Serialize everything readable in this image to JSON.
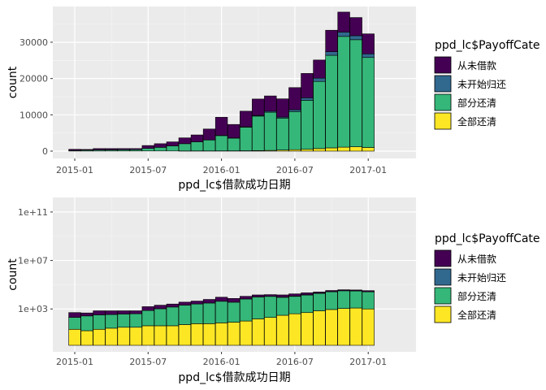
{
  "colors": {
    "panel_bg": "#EBEBEB",
    "grid_major": "#FFFFFF",
    "bar_outline": "#000000",
    "全部还清": "#FDE725",
    "部分还清": "#35B779",
    "未开始归还": "#31688E",
    "从未借款": "#440154"
  },
  "chart_data": [
    {
      "type": "bar",
      "stacked": true,
      "xlabel": "ppd_lc$借款成功日期",
      "ylabel": "count",
      "y_scale": "linear",
      "ylim": [
        0,
        40000
      ],
      "y_ticks": [
        0,
        10000,
        20000,
        30000
      ],
      "y_tick_labels": [
        "0",
        "10000",
        "20000",
        "30000"
      ],
      "x_ticks": [
        "2015-01",
        "2015-07",
        "2016-01",
        "2016-07",
        "2017-01"
      ],
      "categories": [
        "2015-01",
        "2015-02",
        "2015-03",
        "2015-04",
        "2015-05",
        "2015-06",
        "2015-07",
        "2015-08",
        "2015-09",
        "2015-10",
        "2015-11",
        "2015-12",
        "2016-01",
        "2016-02",
        "2016-03",
        "2016-04",
        "2016-05",
        "2016-06",
        "2016-07",
        "2016-08",
        "2016-09",
        "2016-10",
        "2016-11",
        "2016-12",
        "2017-01"
      ],
      "legend": {
        "title": "ppd_lc$PayoffCate",
        "position": "right",
        "entries": [
          "从未借款",
          "未开始归还",
          "部分还清",
          "全部还清"
        ]
      },
      "grid": true,
      "series": [
        {
          "name": "全部还清",
          "values": [
            20,
            15,
            20,
            25,
            30,
            30,
            40,
            40,
            40,
            50,
            60,
            60,
            70,
            80,
            100,
            150,
            200,
            300,
            400,
            500,
            700,
            900,
            1100,
            1200,
            1000
          ]
        },
        {
          "name": "部分还清",
          "values": [
            180,
            250,
            300,
            320,
            350,
            370,
            700,
            1000,
            1400,
            2000,
            2500,
            3000,
            4200,
            3500,
            6500,
            9500,
            10500,
            8800,
            10500,
            13500,
            18500,
            25500,
            30500,
            29500,
            24800
          ]
        },
        {
          "name": "未开始归还",
          "values": [
            0,
            0,
            0,
            0,
            0,
            0,
            0,
            0,
            0,
            0,
            0,
            30,
            50,
            60,
            100,
            200,
            300,
            300,
            500,
            700,
            900,
            1000,
            1200,
            1100,
            1000
          ]
        },
        {
          "name": "从未借款",
          "values": [
            300,
            200,
            380,
            350,
            320,
            300,
            800,
            1000,
            1100,
            1600,
            1900,
            3000,
            5000,
            3700,
            4300,
            4500,
            4200,
            5000,
            6100,
            6700,
            5000,
            5900,
            5500,
            5000,
            5500
          ]
        }
      ]
    },
    {
      "type": "bar",
      "stacked": true,
      "xlabel": "ppd_lc$借款成功日期",
      "ylabel": "count",
      "y_scale": "log10 (stacked)",
      "ylim": [
        1,
        1000000000000
      ],
      "y_ticks": [
        1000,
        10000000,
        100000000000
      ],
      "y_tick_labels": [
        "1e+03",
        "1e+07",
        "1e+11"
      ],
      "x_ticks": [
        "2015-01",
        "2015-07",
        "2016-01",
        "2016-07",
        "2017-01"
      ],
      "categories": [
        "2015-01",
        "2015-02",
        "2015-03",
        "2015-04",
        "2015-05",
        "2015-06",
        "2015-07",
        "2015-08",
        "2015-09",
        "2015-10",
        "2015-11",
        "2015-12",
        "2016-01",
        "2016-02",
        "2016-03",
        "2016-04",
        "2016-05",
        "2016-06",
        "2016-07",
        "2016-08",
        "2016-09",
        "2016-10",
        "2016-11",
        "2016-12",
        "2017-01"
      ],
      "legend": {
        "title": "ppd_lc$PayoffCate",
        "position": "right",
        "entries": [
          "从未借款",
          "未开始归还",
          "部分还清",
          "全部还清"
        ]
      },
      "grid": true,
      "series": [
        {
          "name": "全部还清",
          "values": [
            20,
            15,
            20,
            25,
            30,
            30,
            40,
            40,
            40,
            50,
            60,
            60,
            70,
            80,
            100,
            150,
            200,
            300,
            400,
            500,
            700,
            900,
            1100,
            1200,
            1000
          ]
        },
        {
          "name": "部分还清",
          "values": [
            180,
            250,
            300,
            320,
            350,
            370,
            700,
            1000,
            1400,
            2000,
            2500,
            3000,
            4200,
            3500,
            6500,
            9500,
            10500,
            8800,
            10500,
            13500,
            18500,
            25500,
            30500,
            29500,
            24800
          ]
        },
        {
          "name": "未开始归还",
          "values": [
            1,
            1,
            1,
            1,
            1,
            1,
            1,
            1,
            1,
            1,
            1,
            30,
            50,
            60,
            100,
            200,
            300,
            300,
            500,
            700,
            900,
            1000,
            1200,
            1100,
            1000
          ]
        },
        {
          "name": "从未借款",
          "values": [
            300,
            200,
            380,
            350,
            320,
            300,
            800,
            1000,
            1100,
            1600,
            1900,
            3000,
            5000,
            3700,
            4300,
            4500,
            4200,
            5000,
            6100,
            6700,
            5000,
            5900,
            5500,
            5000,
            5500
          ]
        }
      ]
    }
  ]
}
